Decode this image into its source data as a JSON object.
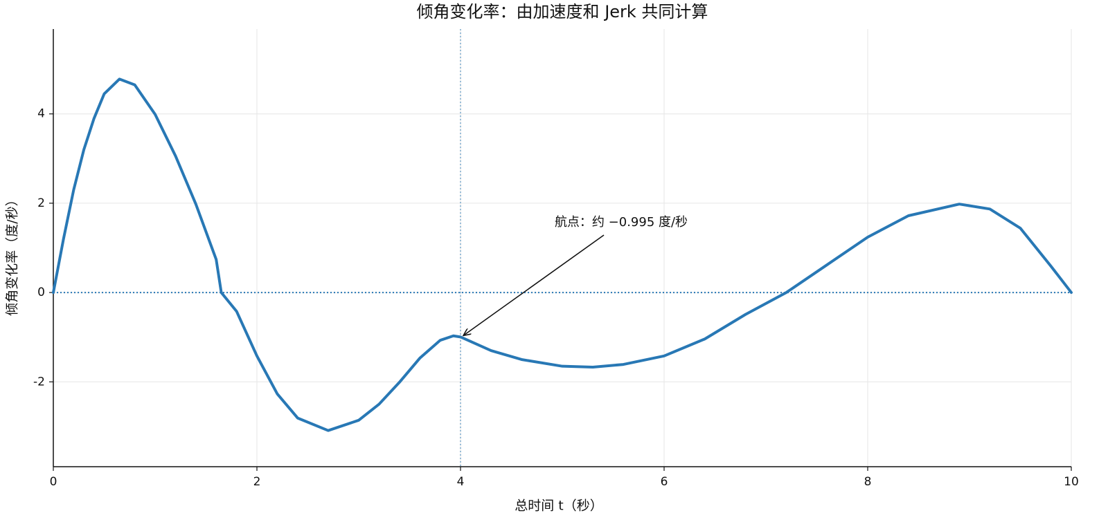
{
  "chart_data": {
    "type": "line",
    "title": "倾角变化率：由加速度和 Jerk 共同计算",
    "x_label": "总时间 t（秒）",
    "y_label": "倾角变化率（度/秒）",
    "x": [
      0,
      0.1,
      0.2,
      0.3,
      0.4,
      0.5,
      0.65,
      0.8,
      1.0,
      1.2,
      1.4,
      1.6,
      1.65,
      1.8,
      2.0,
      2.2,
      2.4,
      2.7,
      3.0,
      3.2,
      3.4,
      3.6,
      3.8,
      3.93,
      4.0,
      4.3,
      4.6,
      5.0,
      5.3,
      5.6,
      6.0,
      6.4,
      6.8,
      7.2,
      7.6,
      8.0,
      8.4,
      8.9,
      9.2,
      9.5,
      9.8,
      10
    ],
    "series": [
      {
        "color": "#2878b5",
        "values": [
          0,
          1.2,
          2.3,
          3.2,
          3.9,
          4.45,
          4.78,
          4.65,
          3.99,
          3.06,
          1.98,
          0.74,
          0,
          -0.42,
          -1.42,
          -2.27,
          -2.81,
          -3.09,
          -2.86,
          -2.5,
          -2.01,
          -1.47,
          -1.07,
          -0.97,
          -0.995,
          -1.3,
          -1.5,
          -1.65,
          -1.67,
          -1.61,
          -1.42,
          -1.04,
          -0.49,
          0,
          0.62,
          1.24,
          1.72,
          1.98,
          1.87,
          1.44,
          0.59,
          0
        ]
      }
    ],
    "xlim": [
      0,
      10
    ],
    "ylim": [
      -3.9,
      5.9
    ],
    "xticks": [
      0,
      2,
      4,
      6,
      8,
      10
    ],
    "yticks": [
      -2,
      0,
      2,
      4
    ],
    "grid": true,
    "reference_lines": {
      "x": 4,
      "y": 0,
      "color": "#2878b5"
    },
    "annotations": [
      {
        "text": "航点：约 −0.995 度/秒",
        "x": 4,
        "y": -0.995
      }
    ]
  }
}
